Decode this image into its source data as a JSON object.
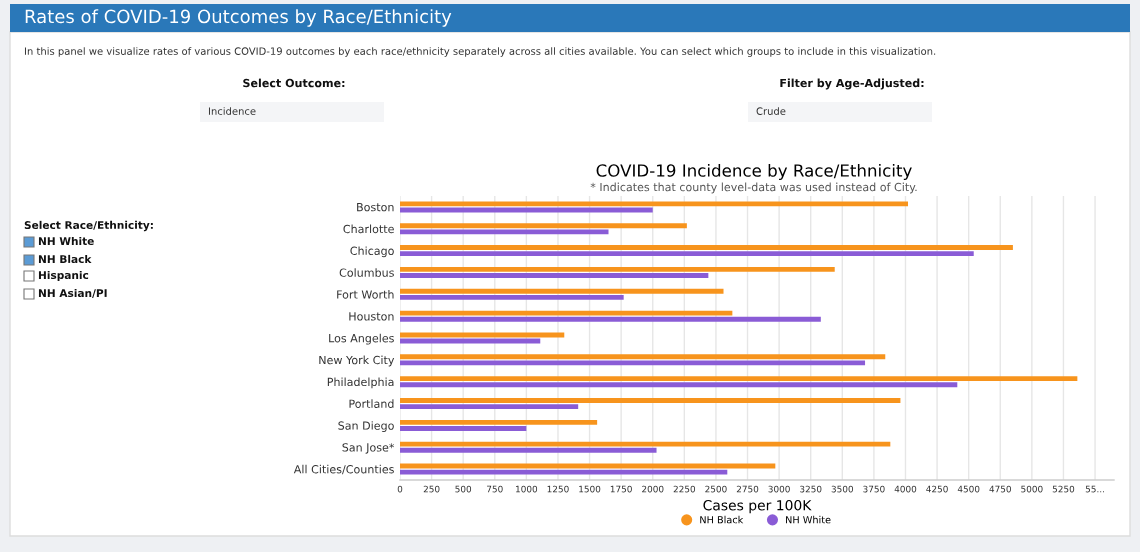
{
  "chart_data": {
    "type": "bar",
    "orientation": "horizontal",
    "title": "COVID-19 Incidence by Race/Ethnicity",
    "subtitle": "* Indicates that county level-data was used instead of City.",
    "xlabel": "Cases per 100K",
    "categories": [
      "Boston",
      "Charlotte",
      "Chicago",
      "Columbus",
      "Fort Worth",
      "Houston",
      "Los Angeles",
      "New York City",
      "Philadelphia",
      "Portland",
      "San Diego",
      "San Jose*",
      "All Cities/Counties"
    ],
    "series": [
      {
        "name": "NH Black",
        "color": "#f7941d",
        "values": [
          4020,
          2270,
          4850,
          3440,
          2560,
          2630,
          1300,
          3840,
          5360,
          3960,
          1560,
          3880,
          2970
        ]
      },
      {
        "name": "NH White",
        "color": "#8a5cd6",
        "values": [
          2000,
          1650,
          4540,
          2440,
          1770,
          3330,
          1110,
          3680,
          4410,
          1410,
          1000,
          2030,
          2590
        ]
      }
    ],
    "xlim": [
      0,
      5650
    ],
    "xticks": [
      0,
      250,
      500,
      750,
      1000,
      1250,
      1500,
      1750,
      2000,
      2250,
      2500,
      2750,
      3000,
      3250,
      3500,
      3750,
      4000,
      4250,
      4500,
      4750,
      5000,
      5250,
      {
        "value": 5500,
        "label": "55..."
      }
    ],
    "grid": "x",
    "legend": "bottom",
    "annotations": [
      "Rates of COVID-19 Outcomes by Race/Ethnicity",
      "In this panel we visualize rates of various COVID-19 outcomes by each race/ethnicity separately across all cities available. You can select which groups to include in this visualization.",
      "Select Outcome:",
      "Incidence",
      "Filter by Age-Adjusted:",
      "Crude",
      "Select Race/Ethnicity:",
      "NH White",
      "NH Black",
      "Hispanic",
      "NH Asian/PI"
    ]
  }
}
